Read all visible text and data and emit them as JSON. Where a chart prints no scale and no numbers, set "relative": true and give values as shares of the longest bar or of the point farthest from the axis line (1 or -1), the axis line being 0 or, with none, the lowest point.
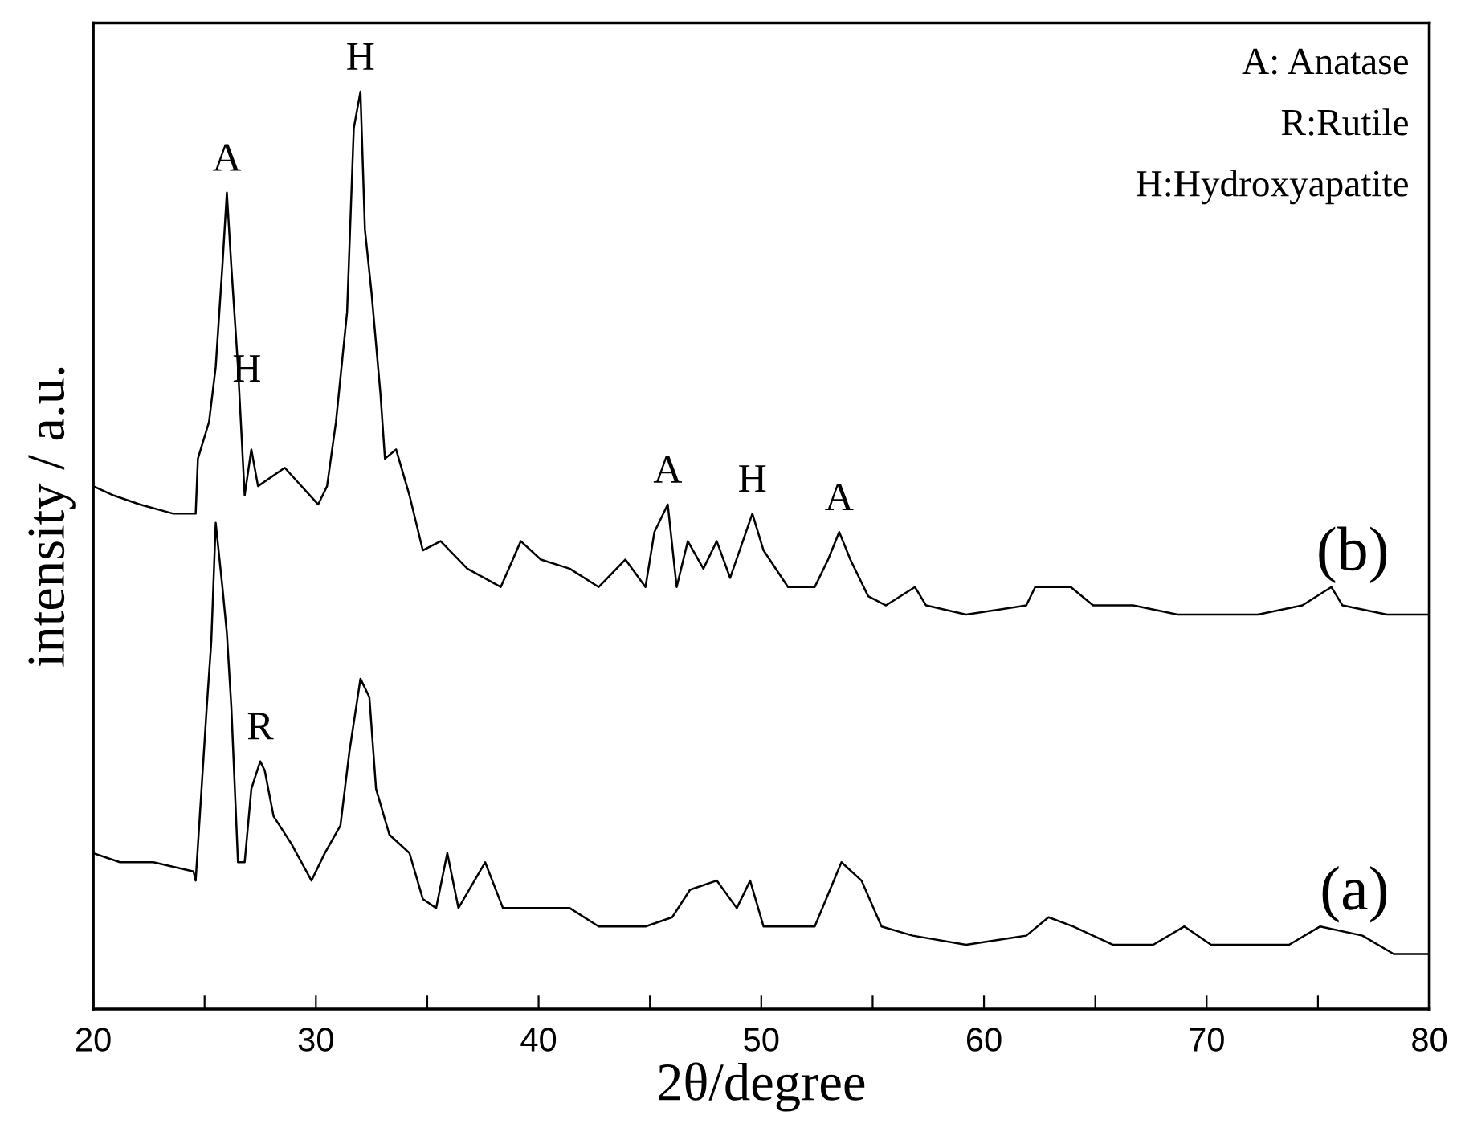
{
  "chart_data": {
    "type": "line",
    "relative": true,
    "xlabel": "2θ/degree",
    "ylabel": "intensity / a.u.",
    "xlim": [
      20,
      80
    ],
    "xticks": [
      20,
      {
        "value": 25,
        "label": null
      },
      30,
      {
        "value": 35,
        "label": null
      },
      40,
      {
        "value": 45,
        "label": null
      },
      50,
      {
        "value": 55,
        "label": null
      },
      60,
      {
        "value": 65,
        "label": null
      },
      70,
      {
        "value": 75,
        "label": null
      },
      80
    ],
    "tick_labels": "x",
    "grid": false,
    "legend": false,
    "series": [
      {
        "name": "(b)",
        "color": "#000000",
        "x": [
          20,
          20.9,
          22.1,
          23.6,
          24.6,
          24.7,
          25.2,
          25.5,
          25.8,
          26.0,
          26.2,
          26.5,
          26.8,
          27.1,
          27.4,
          28.6,
          30.1,
          30.5,
          30.9,
          31.4,
          31.7,
          32.0,
          32.2,
          32.5,
          32.9,
          33.1,
          33.6,
          34.2,
          34.8,
          35.6,
          36.8,
          38.3,
          39.2,
          40.1,
          41.4,
          42.7,
          43.9,
          44.8,
          45.2,
          45.8,
          46.2,
          46.7,
          47.4,
          48.0,
          48.6,
          49.6,
          50.1,
          51.2,
          52.4,
          53.0,
          53.5,
          54.0,
          54.8,
          55.6,
          56.9,
          57.4,
          59.2,
          61.9,
          62.3,
          63.9,
          64.9,
          66.7,
          68.7,
          72.3,
          74.3,
          75.6,
          76.1,
          78.1,
          80
        ],
        "values": [
          0.57,
          0.56,
          0.55,
          0.54,
          0.54,
          0.6,
          0.64,
          0.7,
          0.81,
          0.89,
          0.81,
          0.7,
          0.56,
          0.61,
          0.57,
          0.59,
          0.55,
          0.57,
          0.64,
          0.76,
          0.96,
          1.0,
          0.85,
          0.78,
          0.67,
          0.6,
          0.61,
          0.56,
          0.5,
          0.51,
          0.48,
          0.46,
          0.51,
          0.49,
          0.48,
          0.46,
          0.49,
          0.46,
          0.52,
          0.55,
          0.46,
          0.51,
          0.48,
          0.51,
          0.47,
          0.54,
          0.5,
          0.46,
          0.46,
          0.49,
          0.52,
          0.49,
          0.45,
          0.44,
          0.46,
          0.44,
          0.43,
          0.44,
          0.46,
          0.46,
          0.44,
          0.44,
          0.43,
          0.43,
          0.44,
          0.46,
          0.44,
          0.43,
          0.43
        ]
      },
      {
        "name": "(a)",
        "color": "#000000",
        "x": [
          20,
          21.2,
          22.7,
          24.5,
          24.6,
          25.1,
          25.3,
          25.5,
          25.8,
          26.0,
          26.2,
          26.5,
          26.8,
          27.1,
          27.5,
          27.7,
          28.1,
          28.9,
          29.8,
          30.4,
          31.1,
          31.5,
          32.0,
          32.4,
          32.7,
          33.3,
          34.2,
          34.8,
          35.4,
          35.9,
          36.4,
          37.6,
          38.4,
          39.8,
          41.4,
          42.7,
          44.8,
          46.0,
          46.8,
          48.0,
          48.9,
          49.5,
          50.1,
          52.4,
          53.6,
          54.5,
          55.4,
          56.8,
          59.2,
          61.9,
          62.9,
          64.0,
          65.8,
          67.6,
          69.0,
          70.2,
          73.7,
          75.1,
          77.0,
          78.4,
          80
        ],
        "values": [
          0.17,
          0.16,
          0.16,
          0.15,
          0.14,
          0.33,
          0.4,
          0.53,
          0.46,
          0.41,
          0.33,
          0.16,
          0.16,
          0.24,
          0.27,
          0.26,
          0.21,
          0.18,
          0.14,
          0.17,
          0.2,
          0.28,
          0.36,
          0.34,
          0.24,
          0.19,
          0.17,
          0.12,
          0.11,
          0.17,
          0.11,
          0.16,
          0.11,
          0.11,
          0.11,
          0.09,
          0.09,
          0.1,
          0.13,
          0.14,
          0.11,
          0.14,
          0.09,
          0.09,
          0.16,
          0.14,
          0.09,
          0.08,
          0.07,
          0.08,
          0.1,
          0.09,
          0.07,
          0.07,
          0.09,
          0.07,
          0.07,
          0.09,
          0.08,
          0.06,
          0.06
        ]
      }
    ],
    "annotations": [
      {
        "text": "A",
        "x": 26.0,
        "y": 0.89
      },
      {
        "text": "H",
        "x": 26.9,
        "y": 0.66
      },
      {
        "text": "H",
        "x": 32.0,
        "y": 1.0
      },
      {
        "text": "R",
        "x": 27.5,
        "y": 0.27
      },
      {
        "text": "A",
        "x": 45.8,
        "y": 0.55
      },
      {
        "text": "H",
        "x": 49.6,
        "y": 0.54
      },
      {
        "text": "A",
        "x": 53.5,
        "y": 0.52
      },
      "A: Anatase",
      "R:Rutile",
      "H:Hydroxyapatite"
    ]
  }
}
